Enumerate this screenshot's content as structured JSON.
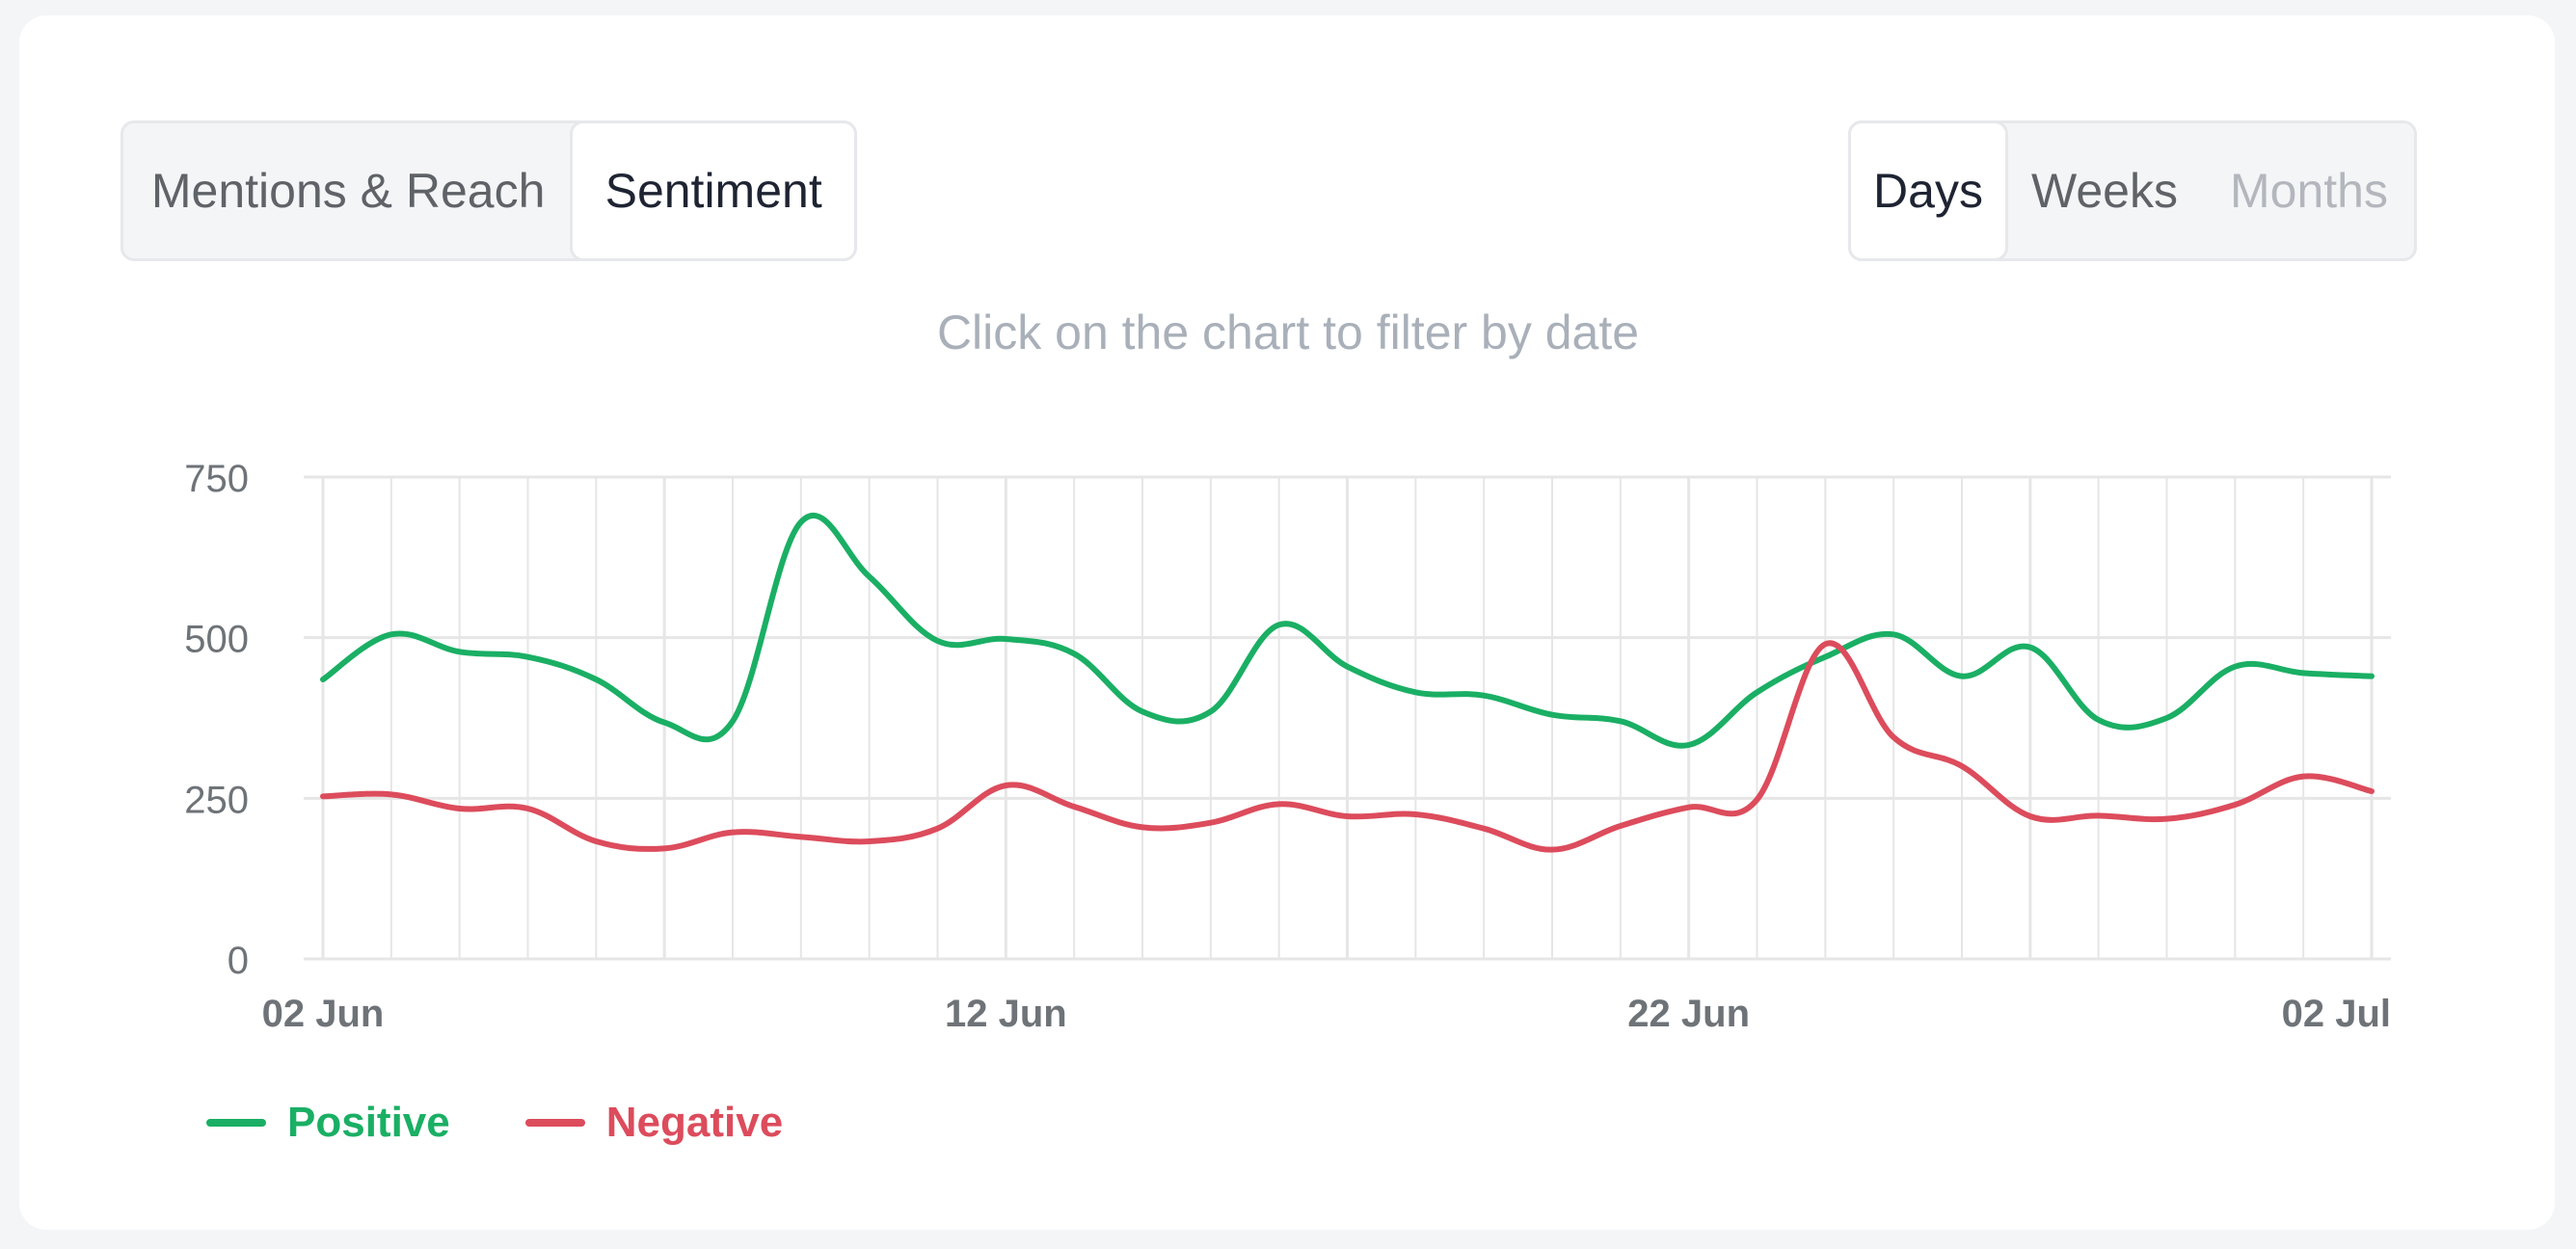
{
  "tabs": {
    "mentions_reach": "Mentions & Reach",
    "sentiment": "Sentiment",
    "active": "Sentiment"
  },
  "granularity": {
    "days": "Days",
    "weeks": "Weeks",
    "months": "Months",
    "active": "Days"
  },
  "hint": "Click on the chart to filter by date",
  "colors": {
    "positive": "#1aaf64",
    "negative": "#dc4c5c",
    "grid": "#e6e6e6"
  },
  "chart_data": {
    "type": "line",
    "title": "",
    "xlabel": "",
    "ylabel": "",
    "x": [
      "02 Jun",
      "03 Jun",
      "04 Jun",
      "05 Jun",
      "06 Jun",
      "07 Jun",
      "08 Jun",
      "09 Jun",
      "10 Jun",
      "11 Jun",
      "12 Jun",
      "13 Jun",
      "14 Jun",
      "15 Jun",
      "16 Jun",
      "17 Jun",
      "18 Jun",
      "19 Jun",
      "20 Jun",
      "21 Jun",
      "22 Jun",
      "23 Jun",
      "24 Jun",
      "25 Jun",
      "26 Jun",
      "27 Jun",
      "28 Jun",
      "29 Jun",
      "30 Jun",
      "01 Jul",
      "02 Jul"
    ],
    "x_tick_labels": [
      "02 Jun",
      "12 Jun",
      "22 Jun",
      "02 Jul"
    ],
    "y_ticks": [
      0,
      250,
      500,
      750
    ],
    "ylim": [
      0,
      750
    ],
    "grid": true,
    "legend_position": "bottom-left",
    "series": [
      {
        "name": "Positive",
        "values": [
          435,
          505,
          478,
          470,
          435,
          368,
          370,
          680,
          595,
          495,
          498,
          475,
          385,
          385,
          520,
          455,
          415,
          410,
          380,
          370,
          333,
          415,
          470,
          505,
          440,
          485,
          372,
          375,
          455,
          445,
          440
        ]
      },
      {
        "name": "Negative",
        "values": [
          253,
          256,
          234,
          234,
          183,
          172,
          197,
          190,
          183,
          203,
          270,
          237,
          205,
          212,
          241,
          222,
          225,
          203,
          170,
          207,
          236,
          248,
          490,
          345,
          300,
          222,
          223,
          218,
          240,
          284,
          261
        ]
      }
    ]
  }
}
